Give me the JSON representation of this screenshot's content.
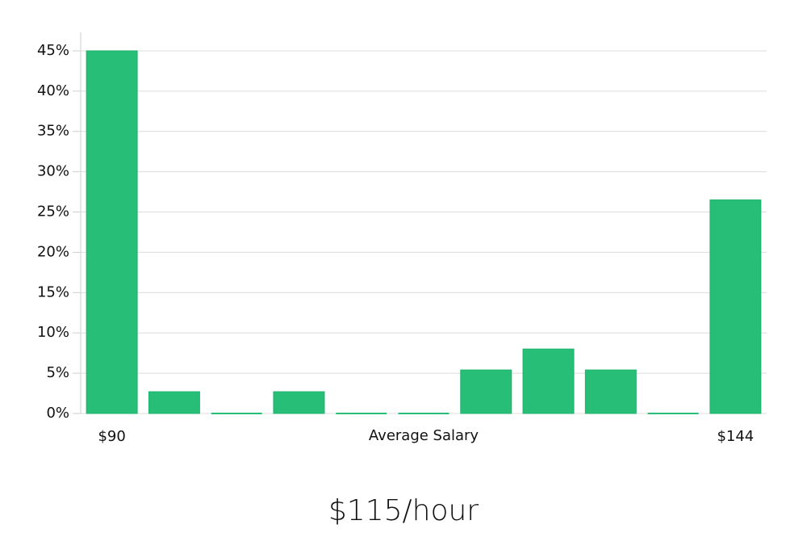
{
  "chart_data": {
    "type": "bar",
    "x_label": "Average Salary",
    "footer": "$115/hour",
    "categories": [
      "$90",
      null,
      null,
      null,
      null,
      null,
      null,
      null,
      null,
      null,
      "$144"
    ],
    "values": [
      45,
      2.7,
      0,
      2.7,
      0,
      0,
      5.4,
      8,
      5.4,
      0,
      26.5
    ],
    "color": "#27bf78",
    "ylim": [
      0,
      47.5
    ],
    "yticks": [
      {
        "value": 0,
        "label": "0%"
      },
      {
        "value": 5,
        "label": "5%"
      },
      {
        "value": 10,
        "label": "10%"
      },
      {
        "value": 15,
        "label": "15%"
      },
      {
        "value": 20,
        "label": "20%"
      },
      {
        "value": 25,
        "label": "25%"
      },
      {
        "value": 30,
        "label": "30%"
      },
      {
        "value": 35,
        "label": "35%"
      },
      {
        "value": 40,
        "label": "40%"
      },
      {
        "value": 45,
        "label": "45%"
      }
    ],
    "grid": true
  }
}
